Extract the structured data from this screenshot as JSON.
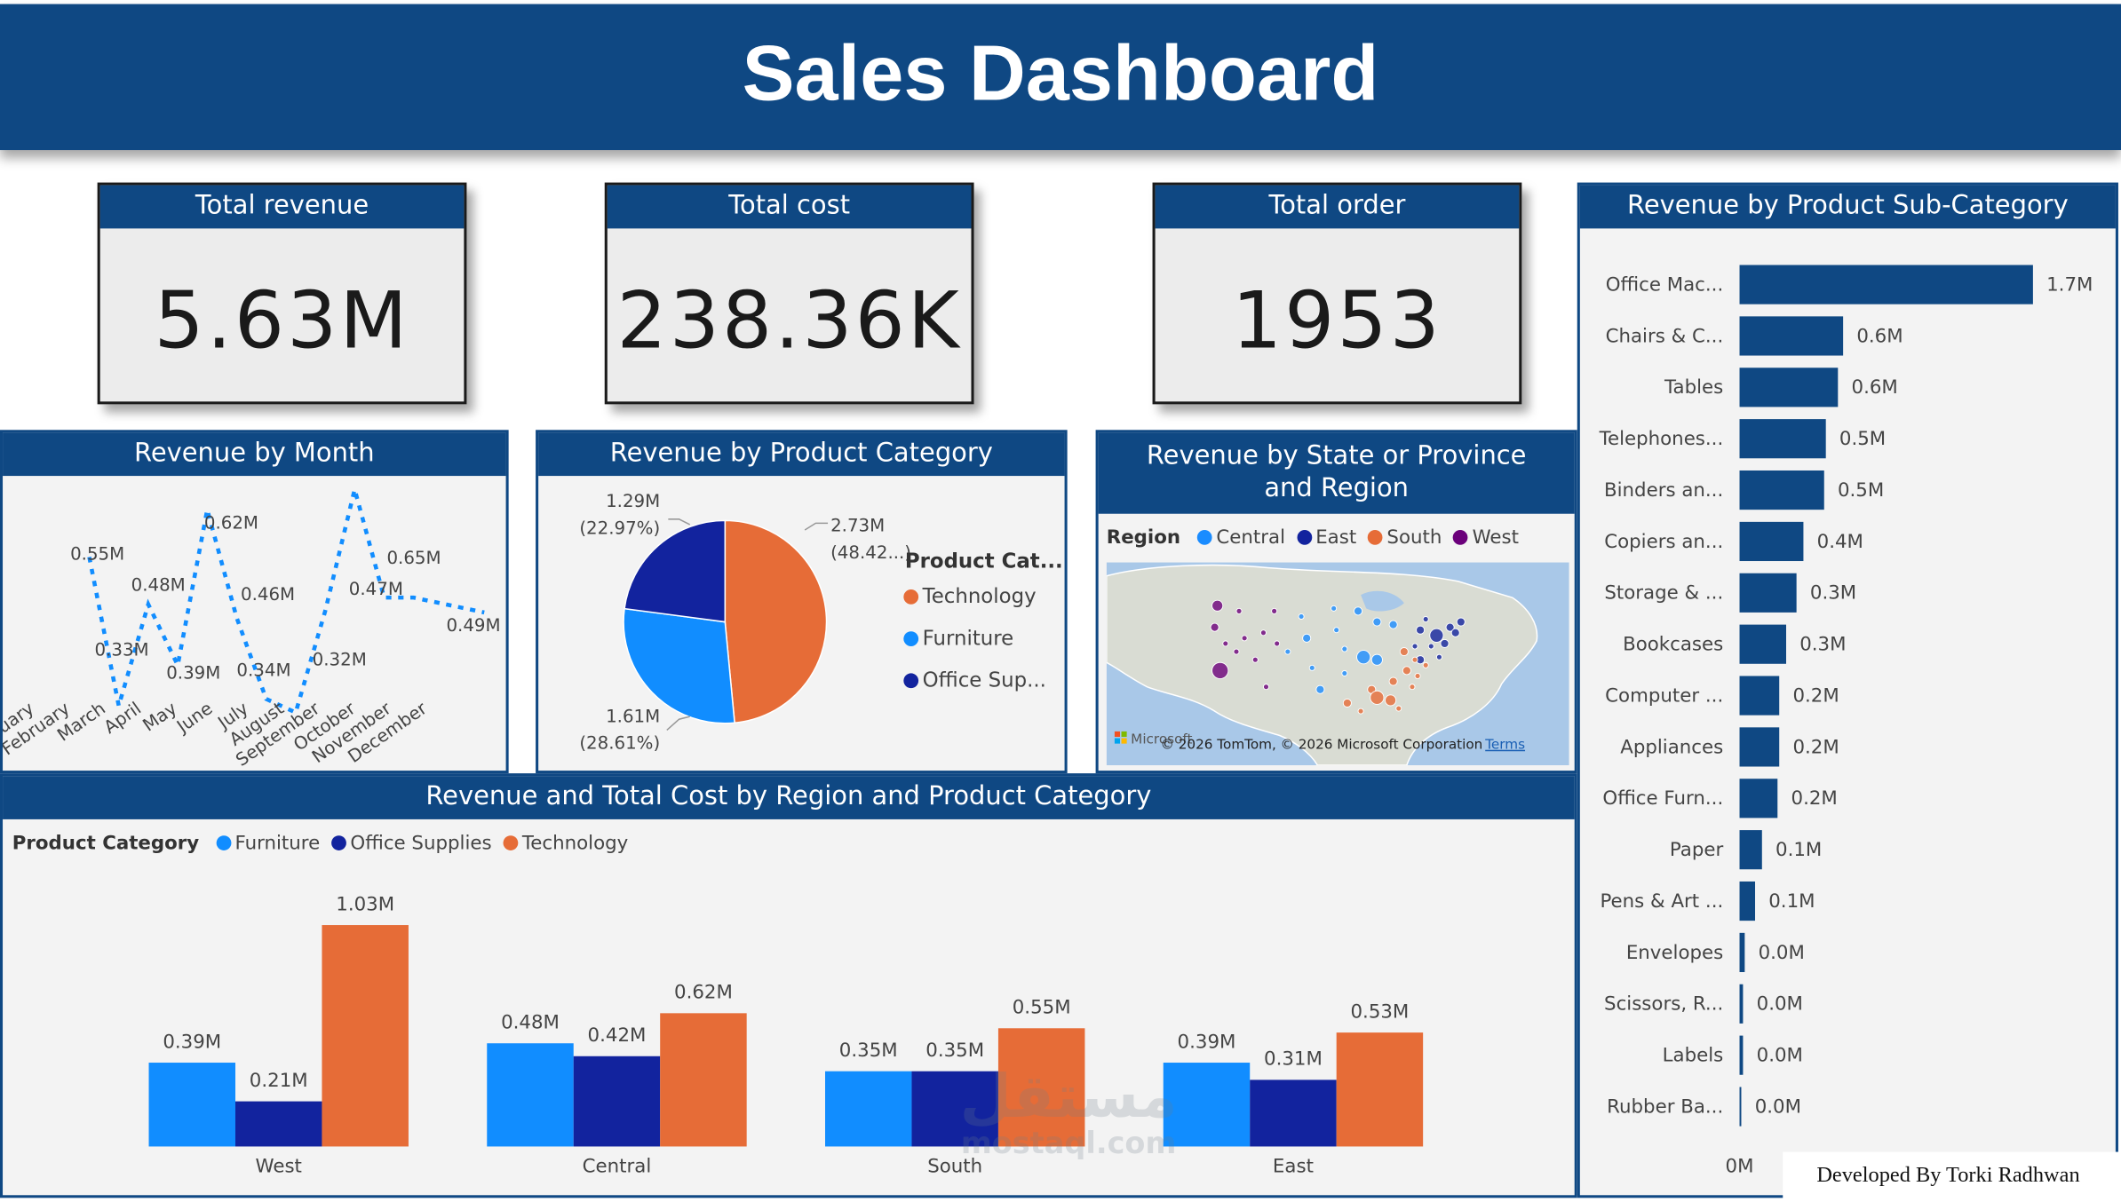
{
  "title": "Sales Dashboard",
  "kpis": {
    "revenue": {
      "label": "Total revenue",
      "value": "5.63M"
    },
    "cost": {
      "label": "Total cost",
      "value": "238.36K"
    },
    "orders": {
      "label": "Total order",
      "value": "1953"
    }
  },
  "month_panel": {
    "title": "Revenue by Month"
  },
  "category_panel": {
    "title": "Revenue by Product Category",
    "legend_title": "Product Cat..."
  },
  "map_panel": {
    "title_line1": "Revenue by State or Province",
    "title_line2": "and Region",
    "legend_title": "Region",
    "regions": [
      {
        "name": "Central",
        "color": "#1a8cff"
      },
      {
        "name": "East",
        "color": "#12239e"
      },
      {
        "name": "South",
        "color": "#e66c37"
      },
      {
        "name": "West",
        "color": "#6b007b"
      }
    ],
    "credit": "© 2026 TomTom, © 2026 Microsoft Corporation",
    "terms": "Terms",
    "ms_label": "Microsoft"
  },
  "cluster_panel": {
    "title": "Revenue and Total Cost by Region and Product Category",
    "legend_title": "Product Category"
  },
  "subcat_panel": {
    "title": "Revenue by Product Sub-Category"
  },
  "footer": {
    "credit": "Developed By Torki Radhwan"
  },
  "watermark": {
    "arabic": "مستقل",
    "latin": "mostaql.com"
  },
  "colors": {
    "header": "#0f4883",
    "technology": "#e66c37",
    "furniture": "#118dff",
    "office_supplies": "#12239e",
    "line": "#118dff"
  },
  "chart_data": [
    {
      "type": "line",
      "title": "Revenue by Month",
      "categories": [
        "January",
        "February",
        "March",
        "April",
        "May",
        "June",
        "July",
        "August",
        "September",
        "October",
        "November",
        "December"
      ],
      "values": [
        0.55,
        0.33,
        0.48,
        0.39,
        0.62,
        0.46,
        0.34,
        0.32,
        0.47,
        0.65,
        0.49,
        0.49
      ],
      "labels": [
        "0.55M",
        "0.33M",
        "0.48M",
        "0.39M",
        "0.62M",
        "0.46M",
        "0.34M",
        "0.32M",
        "0.47M",
        "0.65M",
        "0.49M"
      ],
      "style": "dotted"
    },
    {
      "type": "pie",
      "title": "Revenue by Product Category",
      "slices": [
        {
          "name": "Technology",
          "value": 2.73,
          "label": "2.73M",
          "pct": "(48.42...)",
          "color": "#e66c37"
        },
        {
          "name": "Furniture",
          "value": 1.61,
          "label": "1.61M",
          "pct": "(28.61%)",
          "color": "#118dff"
        },
        {
          "name": "Office Sup...",
          "value": 1.29,
          "label": "1.29M",
          "pct": "(22.97%)",
          "color": "#12239e"
        }
      ]
    },
    {
      "type": "bar",
      "title": "Revenue and Total Cost by Region and Product Category",
      "categories": [
        "West",
        "Central",
        "South",
        "East"
      ],
      "series": [
        {
          "name": "Furniture",
          "color": "#118dff",
          "values": [
            0.39,
            0.48,
            0.35,
            0.39
          ],
          "labels": [
            "0.39M",
            "0.48M",
            "0.35M",
            "0.39M"
          ]
        },
        {
          "name": "Office Supplies",
          "color": "#12239e",
          "values": [
            0.21,
            0.42,
            0.35,
            0.31
          ],
          "labels": [
            "0.21M",
            "0.42M",
            "0.35M",
            "0.31M"
          ]
        },
        {
          "name": "Technology",
          "color": "#e66c37",
          "values": [
            1.03,
            0.62,
            0.55,
            0.53
          ],
          "labels": [
            "1.03M",
            "0.62M",
            "0.55M",
            "0.53M"
          ]
        }
      ]
    },
    {
      "type": "bar",
      "orientation": "horizontal",
      "title": "Revenue by Product Sub-Category",
      "categories": [
        "Office Mac...",
        "Chairs & C...",
        "Tables",
        "Telephones...",
        "Binders an...",
        "Copiers an...",
        "Storage & ...",
        "Bookcases",
        "Computer ...",
        "Appliances",
        "Office Furn...",
        "Paper",
        "Pens & Art ...",
        "Envelopes",
        "Scissors, R...",
        "Labels",
        "Rubber Ba..."
      ],
      "values": [
        1.7,
        0.6,
        0.57,
        0.5,
        0.49,
        0.37,
        0.33,
        0.27,
        0.23,
        0.23,
        0.22,
        0.13,
        0.09,
        0.03,
        0.02,
        0.02,
        0.01
      ],
      "labels": [
        "1.7M",
        "0.6M",
        "0.6M",
        "0.5M",
        "0.5M",
        "0.4M",
        "0.3M",
        "0.3M",
        "0.2M",
        "0.2M",
        "0.2M",
        "0.1M",
        "0.1M",
        "0.0M",
        "0.0M",
        "0.0M",
        "0.0M"
      ],
      "x_axis_label": "0M",
      "color": "#0f4883"
    }
  ]
}
